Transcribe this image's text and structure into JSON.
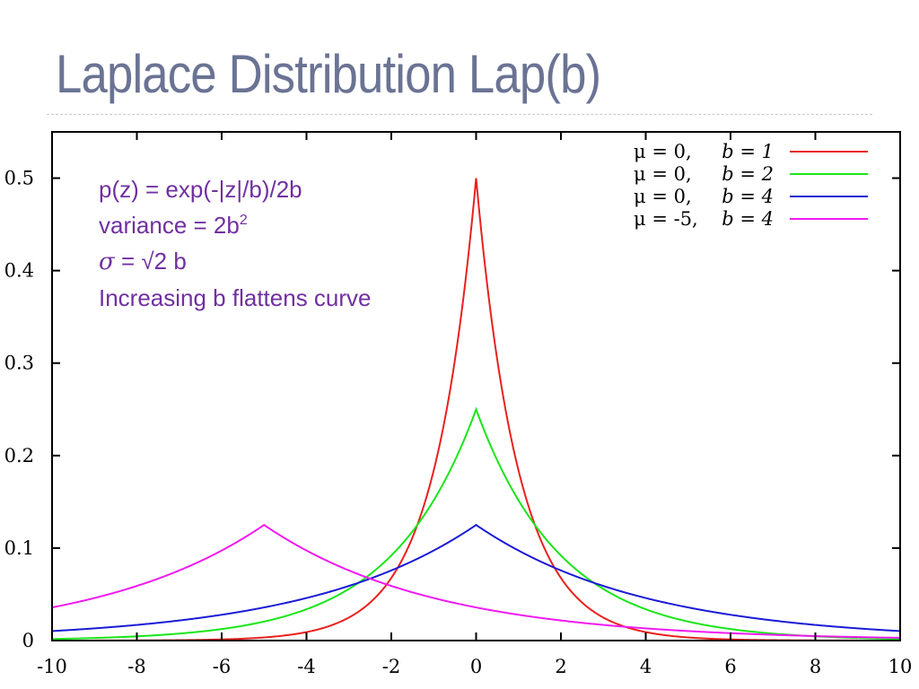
{
  "slide": {
    "title": "Laplace Distribution Lap(b)"
  },
  "chart_data": {
    "type": "line",
    "xlim": [
      -10,
      10
    ],
    "ylim": [
      0,
      0.55
    ],
    "x_ticks": [
      "-10",
      "-8",
      "-6",
      "-4",
      "-2",
      "0",
      "2",
      "4",
      "6",
      "8",
      "10"
    ],
    "y_ticks": [
      "0",
      "0.1",
      "0.2",
      "0.3",
      "0.4",
      "0.5"
    ],
    "grid": false,
    "legend_position": "top-right",
    "series": [
      {
        "name": "μ = 0, b = 1",
        "mu_text": "μ = 0,",
        "b_text": "b = 1",
        "mu": 0,
        "b": 1,
        "color": "#e8211d"
      },
      {
        "name": "μ = 0, b = 2",
        "mu_text": "μ = 0,",
        "b_text": "b = 2",
        "mu": 0,
        "b": 2,
        "color": "#19e619"
      },
      {
        "name": "μ = 0, b = 4",
        "mu_text": "μ = 0,",
        "b_text": "b = 4",
        "mu": 0,
        "b": 4,
        "color": "#1a1ad6"
      },
      {
        "name": "μ = -5, b = 4",
        "mu_text": "μ = -5,",
        "b_text": "b = 4",
        "mu": -5,
        "b": 4,
        "color": "#f01af0"
      }
    ],
    "annotations": {
      "pdf": "p(z) = exp(-|z|/b)/2b",
      "variance_prefix": "variance = 2b",
      "variance_sup": "2",
      "sigma_symbol": "σ",
      "sigma_rest": " = √2 b",
      "note": "Increasing b flattens curve"
    }
  }
}
